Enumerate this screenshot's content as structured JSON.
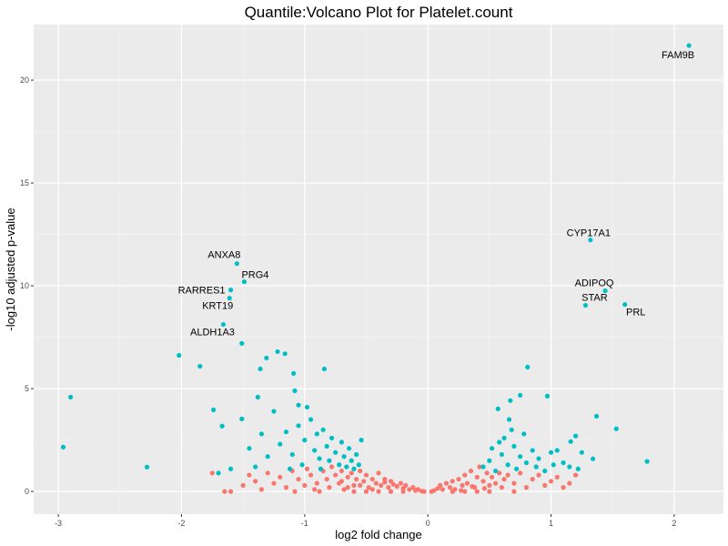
{
  "chart_data": {
    "type": "scatter",
    "title": "Quantile:Volcano Plot for Platelet.count",
    "xlabel": "log2 fold change",
    "ylabel": "-log10 adjusted p-value",
    "xlim": [
      -3.2,
      2.4
    ],
    "ylim": [
      -1.1,
      22.7
    ],
    "xticks": [
      -3,
      -2,
      -1,
      0,
      1,
      2
    ],
    "yticks": [
      0,
      5,
      10,
      15,
      20
    ],
    "grid": true,
    "colors": {
      "significant": "#00BFC4",
      "not_significant": "#F8766D",
      "panel": "#EBEBEB"
    },
    "labeled_points": [
      {
        "label": "FAM9B",
        "x": 2.12,
        "y": 21.68
      },
      {
        "label": "CYP17A1",
        "x": 1.32,
        "y": 12.23
      },
      {
        "label": "ADIPOQ",
        "x": 1.44,
        "y": 9.76
      },
      {
        "label": "STAR",
        "x": 1.28,
        "y": 9.05
      },
      {
        "label": "PRL",
        "x": 1.6,
        "y": 9.09
      },
      {
        "label": "ANXA8",
        "x": -1.55,
        "y": 11.08
      },
      {
        "label": "PRG4",
        "x": -1.49,
        "y": 10.2
      },
      {
        "label": "RARRES1",
        "x": -1.6,
        "y": 9.8
      },
      {
        "label": "KRT19",
        "x": -1.61,
        "y": 9.4
      },
      {
        "label": "ALDH1A3",
        "x": -1.66,
        "y": 8.12
      }
    ],
    "significant": [
      [
        -1.51,
        7.2
      ],
      [
        -2.02,
        6.62
      ],
      [
        -1.85,
        6.09
      ],
      [
        -2.9,
        4.59
      ],
      [
        -2.96,
        2.16
      ],
      [
        -2.28,
        1.19
      ],
      [
        -1.74,
        3.97
      ],
      [
        -1.67,
        3.18
      ],
      [
        -1.38,
        4.59
      ],
      [
        -1.31,
        6.49
      ],
      [
        -1.22,
        6.8
      ],
      [
        -1.16,
        6.7
      ],
      [
        -1.36,
        5.96
      ],
      [
        -1.09,
        5.74
      ],
      [
        -0.84,
        5.96
      ],
      [
        -1.08,
        4.9
      ],
      [
        -1.05,
        4.2
      ],
      [
        -1.51,
        3.53
      ],
      [
        0.81,
        6.05
      ],
      [
        0.75,
        4.68
      ],
      [
        0.97,
        4.64
      ],
      [
        0.57,
        4.02
      ],
      [
        0.67,
        4.42
      ],
      [
        1.53,
        3.05
      ],
      [
        1.78,
        1.46
      ],
      [
        1.34,
        1.59
      ],
      [
        1.16,
        2.43
      ],
      [
        1.37,
        3.66
      ],
      [
        -1.2,
        2.3
      ],
      [
        -1.15,
        2.9
      ],
      [
        -1.1,
        1.8
      ],
      [
        -1.05,
        3.2
      ],
      [
        -1.0,
        2.5
      ],
      [
        -0.95,
        3.5
      ],
      [
        -0.92,
        2.0
      ],
      [
        -0.9,
        2.8
      ],
      [
        -0.88,
        1.6
      ],
      [
        -0.85,
        3.0
      ],
      [
        -0.82,
        2.2
      ],
      [
        -0.8,
        1.5
      ],
      [
        -0.78,
        2.6
      ],
      [
        -0.75,
        1.9
      ],
      [
        -0.72,
        1.3
      ],
      [
        -0.7,
        2.4
      ],
      [
        -0.68,
        1.7
      ],
      [
        -0.66,
        1.2
      ],
      [
        -0.64,
        2.1
      ],
      [
        -0.62,
        1.5
      ],
      [
        -0.6,
        1.1
      ],
      [
        -0.58,
        1.8
      ],
      [
        -0.56,
        1.3
      ],
      [
        -0.54,
        2.5
      ],
      [
        -1.3,
        1.7
      ],
      [
        -1.35,
        2.8
      ],
      [
        -1.4,
        1.2
      ],
      [
        -1.25,
        3.9
      ],
      [
        -1.45,
        2.1
      ],
      [
        -0.98,
        4.1
      ],
      [
        -1.02,
        1.3
      ],
      [
        -0.87,
        1.1
      ],
      [
        -1.12,
        1.1
      ],
      [
        -1.6,
        1.1
      ],
      [
        -1.7,
        0.9
      ],
      [
        0.45,
        1.2
      ],
      [
        0.5,
        1.5
      ],
      [
        0.52,
        2.1
      ],
      [
        0.55,
        1.0
      ],
      [
        0.6,
        1.8
      ],
      [
        0.62,
        2.6
      ],
      [
        0.65,
        1.3
      ],
      [
        0.68,
        3.0
      ],
      [
        0.7,
        2.2
      ],
      [
        0.72,
        1.1
      ],
      [
        0.75,
        1.7
      ],
      [
        0.78,
        2.8
      ],
      [
        0.8,
        1.4
      ],
      [
        0.85,
        2.0
      ],
      [
        0.88,
        1.2
      ],
      [
        0.9,
        1.6
      ],
      [
        0.95,
        1.0
      ],
      [
        1.0,
        1.9
      ],
      [
        1.02,
        1.3
      ],
      [
        1.05,
        2.0
      ],
      [
        1.1,
        1.4
      ],
      [
        1.15,
        1.2
      ],
      [
        1.2,
        2.7
      ],
      [
        1.22,
        1.1
      ],
      [
        1.25,
        1.9
      ],
      [
        0.58,
        2.4
      ],
      [
        0.66,
        3.5
      ]
    ],
    "not_significant": [
      [
        -1.75,
        0.9
      ],
      [
        -1.6,
        0.0
      ],
      [
        -1.65,
        0.0
      ],
      [
        -1.5,
        0.3
      ],
      [
        -1.45,
        0.8
      ],
      [
        -1.4,
        0.5
      ],
      [
        -1.35,
        0.1
      ],
      [
        -1.3,
        0.9
      ],
      [
        -1.25,
        0.4
      ],
      [
        -1.2,
        0.7
      ],
      [
        -1.15,
        0.2
      ],
      [
        -1.1,
        1.0
      ],
      [
        -1.05,
        0.6
      ],
      [
        -1.0,
        0.3
      ],
      [
        -0.98,
        1.1
      ],
      [
        -0.95,
        0.8
      ],
      [
        -0.9,
        0.4
      ],
      [
        -0.88,
        0.0
      ],
      [
        -0.85,
        1.0
      ],
      [
        -0.82,
        0.6
      ],
      [
        -0.8,
        0.2
      ],
      [
        -0.78,
        1.2
      ],
      [
        -0.75,
        0.8
      ],
      [
        -0.72,
        0.4
      ],
      [
        -0.7,
        1.0
      ],
      [
        -0.68,
        0.1
      ],
      [
        -0.65,
        0.7
      ],
      [
        -0.62,
        0.9
      ],
      [
        -0.6,
        0.3
      ],
      [
        -0.58,
        0.6
      ],
      [
        -0.55,
        1.0
      ],
      [
        -0.52,
        0.5
      ],
      [
        -0.5,
        0.8
      ],
      [
        -0.48,
        0.2
      ],
      [
        -0.45,
        0.6
      ],
      [
        -0.42,
        0.4
      ],
      [
        -0.4,
        0.9
      ],
      [
        -0.38,
        0.3
      ],
      [
        -0.35,
        0.6
      ],
      [
        -0.32,
        0.2
      ],
      [
        -0.3,
        0.5
      ],
      [
        -0.28,
        0.35
      ],
      [
        -0.25,
        0.25
      ],
      [
        -0.22,
        0.4
      ],
      [
        -0.2,
        0.15
      ],
      [
        -0.18,
        0.3
      ],
      [
        -0.15,
        0.1
      ],
      [
        -0.12,
        0.2
      ],
      [
        -0.1,
        0.05
      ],
      [
        -0.08,
        0.1
      ],
      [
        -0.05,
        0.02
      ],
      [
        -0.03,
        0.0
      ],
      [
        -0.6,
        0.0
      ],
      [
        -0.5,
        0.0
      ],
      [
        -0.4,
        0.0
      ],
      [
        -0.3,
        0.0
      ],
      [
        -0.2,
        0.0
      ],
      [
        -0.7,
        0.5
      ],
      [
        -0.55,
        0.3
      ],
      [
        -0.45,
        0.1
      ],
      [
        -0.35,
        0.45
      ],
      [
        -0.65,
        0.2
      ],
      [
        -0.92,
        0.1
      ],
      [
        -1.08,
        0.0
      ],
      [
        0.03,
        0.0
      ],
      [
        0.05,
        0.05
      ],
      [
        0.08,
        0.15
      ],
      [
        0.1,
        0.3
      ],
      [
        0.12,
        0.1
      ],
      [
        0.15,
        0.4
      ],
      [
        0.18,
        0.2
      ],
      [
        0.2,
        0.5
      ],
      [
        0.22,
        0.1
      ],
      [
        0.25,
        0.6
      ],
      [
        0.28,
        0.3
      ],
      [
        0.3,
        0.8
      ],
      [
        0.32,
        0.4
      ],
      [
        0.35,
        1.0
      ],
      [
        0.38,
        0.2
      ],
      [
        0.4,
        0.7
      ],
      [
        0.42,
        1.2
      ],
      [
        0.45,
        0.5
      ],
      [
        0.48,
        0.9
      ],
      [
        0.5,
        0.3
      ],
      [
        0.52,
        0.7
      ],
      [
        0.55,
        0.4
      ],
      [
        0.58,
        0.9
      ],
      [
        0.6,
        0.2
      ],
      [
        0.62,
        0.6
      ],
      [
        0.65,
        0.8
      ],
      [
        0.7,
        0.4
      ],
      [
        0.75,
        0.9
      ],
      [
        0.8,
        0.2
      ],
      [
        0.85,
        0.6
      ],
      [
        0.9,
        0.8
      ],
      [
        0.95,
        0.3
      ],
      [
        1.0,
        0.5
      ],
      [
        1.05,
        0.7
      ],
      [
        1.1,
        0.2
      ],
      [
        1.15,
        0.4
      ],
      [
        1.2,
        0.8
      ],
      [
        0.2,
        0.0
      ],
      [
        0.3,
        0.0
      ],
      [
        0.4,
        0.0
      ],
      [
        0.5,
        0.0
      ],
      [
        0.7,
        0.0
      ],
      [
        0.36,
        0.25
      ],
      [
        0.46,
        0.15
      ],
      [
        0.27,
        0.05
      ]
    ]
  }
}
